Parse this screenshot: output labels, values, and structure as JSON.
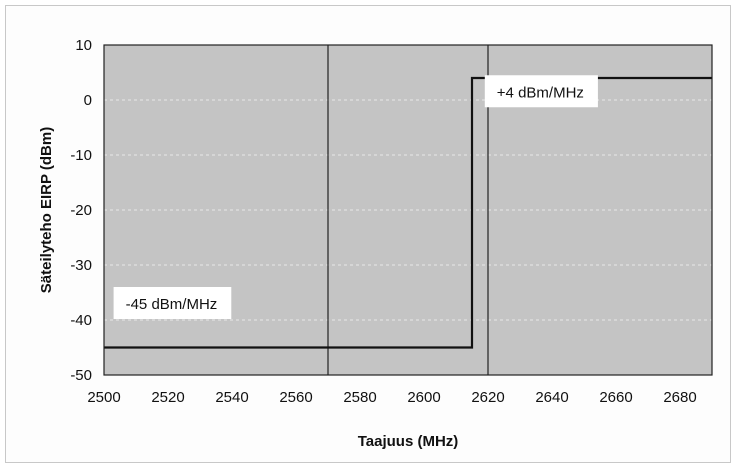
{
  "chart_data": {
    "type": "line",
    "title": "",
    "xlabel": "Taajuus (MHz)",
    "ylabel": "Säteilyteho EIRP (dBm)",
    "xlim": [
      2500,
      2690
    ],
    "ylim": [
      -50,
      10
    ],
    "xticks": [
      2500,
      2520,
      2540,
      2560,
      2580,
      2600,
      2620,
      2640,
      2660,
      2680
    ],
    "yticks": [
      10,
      0,
      -10,
      -20,
      -30,
      -40,
      -50
    ],
    "grid": {
      "horizontal": "dashed",
      "vertical": [
        2570,
        2620
      ]
    },
    "legend": "none",
    "colors": {
      "plot_background": "#c4c4c4",
      "line": "#111111",
      "grid": "#e8e8e8"
    },
    "series": [
      {
        "x": [
          2500,
          2615,
          2615,
          2690
        ],
        "y": [
          -45,
          -45,
          4,
          4
        ]
      }
    ],
    "annotations": [
      {
        "text": "+4 dBm/MHz",
        "x": 2619,
        "y": 0.5
      },
      {
        "text": "-45 dBm/MHz",
        "x": 2503,
        "y": -38
      }
    ]
  }
}
